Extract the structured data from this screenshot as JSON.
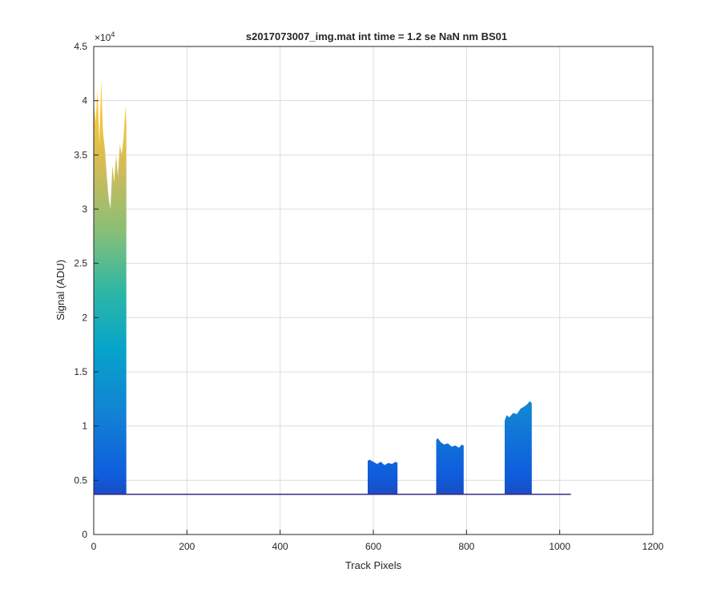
{
  "chart_data": {
    "type": "area",
    "title": "s2017073007_img.mat int time = 1.2 se  NaN nm BS01",
    "xlabel": "Track Pixels",
    "ylabel": "Signal (ADU)",
    "xlim": [
      0,
      1200
    ],
    "ylim": [
      0,
      45000
    ],
    "xticks": [
      0,
      200,
      400,
      600,
      800,
      1000,
      1200
    ],
    "yticks": [
      0,
      0.5,
      1,
      1.5,
      2,
      2.5,
      3,
      3.5,
      4,
      4.5
    ],
    "y_multiplier_label": "×10",
    "y_multiplier_exponent": "4",
    "grid": true,
    "baseline": 3700,
    "x_end": 1024,
    "colormap": "parula",
    "regions": [
      {
        "name": "",
        "x": [
          0,
          4,
          8,
          12,
          16,
          20,
          24,
          28,
          32,
          36,
          40,
          44,
          48,
          52,
          56,
          60,
          64,
          68,
          70
        ],
        "y": [
          40000,
          38000,
          41000,
          36000,
          42000,
          37000,
          35500,
          33000,
          31000,
          30000,
          34000,
          32500,
          35000,
          33000,
          36000,
          35000,
          36500,
          39500,
          38000
        ]
      },
      {
        "name": "",
        "x": [
          588,
          592,
          600,
          608,
          616,
          624,
          632,
          640,
          648,
          652
        ],
        "y": [
          6800,
          6900,
          6700,
          6500,
          6700,
          6400,
          6600,
          6500,
          6700,
          6600
        ]
      },
      {
        "name": "",
        "x": [
          735,
          738,
          745,
          752,
          760,
          768,
          776,
          784,
          790,
          794
        ],
        "y": [
          8700,
          8900,
          8500,
          8300,
          8400,
          8100,
          8200,
          8000,
          8300,
          8200
        ]
      },
      {
        "name": "",
        "x": [
          882,
          886,
          892,
          900,
          908,
          916,
          924,
          930,
          936,
          940
        ],
        "y": [
          10500,
          11000,
          10800,
          11200,
          11100,
          11600,
          11800,
          12000,
          12300,
          12100
        ]
      }
    ]
  }
}
